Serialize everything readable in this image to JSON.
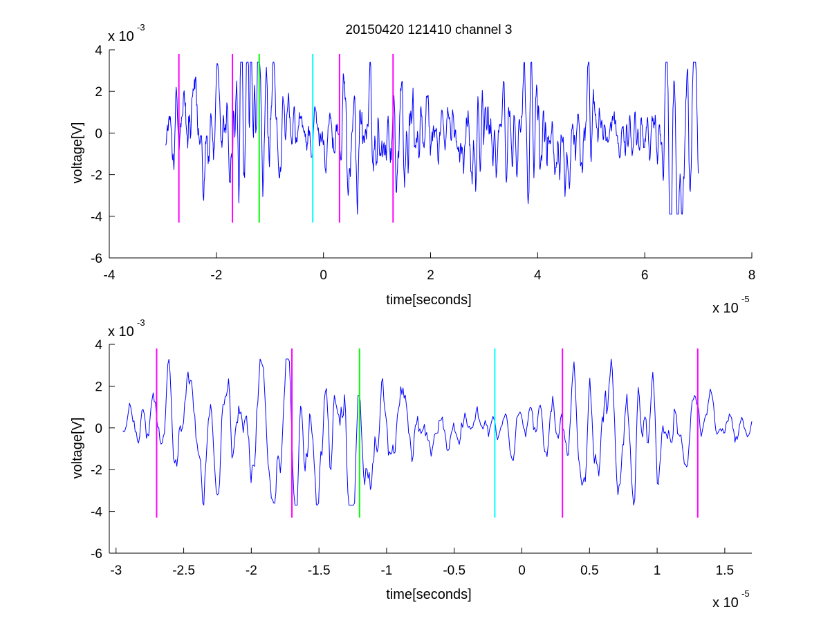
{
  "figure": {
    "title": "20150420 121410 channel 3",
    "background": "#ffffff",
    "signal_color": "#0000ff",
    "axis_color": "#000000"
  },
  "chart_data": [
    {
      "type": "line",
      "title": "20150420 121410 channel 3",
      "xlabel": "time[seconds]",
      "ylabel": "voltage[V]",
      "x_multiplier": {
        "base": "x 10",
        "exponent": "-5"
      },
      "y_multiplier": {
        "base": "x 10",
        "exponent": "-3"
      },
      "xlim": [
        -4,
        8
      ],
      "ylim": [
        -6,
        4
      ],
      "x_ticks": [
        -4,
        -2,
        0,
        2,
        4,
        6,
        8
      ],
      "x_tick_labels": [
        "-4",
        "-2",
        "0",
        "2",
        "4",
        "6",
        "8"
      ],
      "y_ticks": [
        -6,
        -4,
        -2,
        0,
        2,
        4
      ],
      "y_tick_labels": [
        "-6",
        "-4",
        "-2",
        "0",
        "2",
        "4"
      ],
      "grid": false,
      "series": [
        {
          "color": "#0000ff",
          "x_range": [
            -2.95,
            7.0
          ],
          "samples": 1200,
          "noise": 1.25,
          "bursts": [
            {
              "x": -2.4,
              "amp": 1.8
            },
            {
              "x": -1.5,
              "amp": 2.2
            },
            {
              "x": -1.2,
              "amp": 2.4
            },
            {
              "x": 0.6,
              "amp": 2.0
            },
            {
              "x": 1.5,
              "amp": 1.6
            },
            {
              "x": 2.9,
              "amp": 1.5
            },
            {
              "x": 3.9,
              "amp": 1.7
            },
            {
              "x": 4.8,
              "amp": 1.1
            },
            {
              "x": 6.7,
              "amp": 2.8
            }
          ],
          "y_range": [
            -3.9,
            3.4
          ]
        }
      ],
      "markers": [
        {
          "x": -2.7,
          "color": "#ff00ff",
          "y_range": [
            -4.3,
            3.8
          ]
        },
        {
          "x": -1.7,
          "color": "#ff00ff",
          "y_range": [
            -4.3,
            3.8
          ]
        },
        {
          "x": -1.2,
          "color": "#00ff00",
          "y_range": [
            -4.3,
            3.8
          ]
        },
        {
          "x": -0.2,
          "color": "#00ffff",
          "y_range": [
            -4.3,
            3.8
          ]
        },
        {
          "x": 0.3,
          "color": "#ff00ff",
          "y_range": [
            -4.3,
            3.8
          ]
        },
        {
          "x": 1.3,
          "color": "#ff00ff",
          "y_range": [
            -4.3,
            3.8
          ]
        }
      ]
    },
    {
      "type": "line",
      "xlabel": "time[seconds]",
      "ylabel": "voltage[V]",
      "x_multiplier": {
        "base": "x 10",
        "exponent": "-5"
      },
      "y_multiplier": {
        "base": "x 10",
        "exponent": "-3"
      },
      "xlim": [
        -3.05,
        1.7
      ],
      "ylim": [
        -6,
        4
      ],
      "x_ticks": [
        -3,
        -2.5,
        -2,
        -1.5,
        -1,
        -0.5,
        0,
        0.5,
        1,
        1.5
      ],
      "x_tick_labels": [
        "-3",
        "-2.5",
        "-2",
        "-1.5",
        "-1",
        "-0.5",
        "0",
        "0.5",
        "1",
        "1.5"
      ],
      "y_ticks": [
        -6,
        -4,
        -2,
        0,
        2,
        4
      ],
      "y_tick_labels": [
        "-6",
        "-4",
        "-2",
        "0",
        "2",
        "4"
      ],
      "grid": false,
      "series": [
        {
          "color": "#0000ff",
          "x_range": [
            -2.95,
            1.7
          ],
          "samples": 560,
          "noise": 0.9,
          "bursts": [
            {
              "x": -2.5,
              "amp": 1.8
            },
            {
              "x": -2.0,
              "amp": 2.4
            },
            {
              "x": -1.35,
              "amp": 2.6
            },
            {
              "x": -1.15,
              "amp": 2.1
            },
            {
              "x": 0.55,
              "amp": 2.4
            },
            {
              "x": 0.95,
              "amp": 1.9
            }
          ],
          "y_range": [
            -3.7,
            3.3
          ]
        }
      ],
      "markers": [
        {
          "x": -2.7,
          "color": "#ff00ff",
          "y_range": [
            -4.3,
            3.8
          ]
        },
        {
          "x": -1.7,
          "color": "#ff00ff",
          "y_range": [
            -4.3,
            3.8
          ]
        },
        {
          "x": -1.2,
          "color": "#00ff00",
          "y_range": [
            -4.3,
            3.8
          ]
        },
        {
          "x": -0.2,
          "color": "#00ffff",
          "y_range": [
            -4.3,
            3.8
          ]
        },
        {
          "x": 0.3,
          "color": "#ff00ff",
          "y_range": [
            -4.3,
            3.8
          ]
        },
        {
          "x": 1.3,
          "color": "#ff00ff",
          "y_range": [
            -4.3,
            3.8
          ]
        }
      ]
    }
  ]
}
